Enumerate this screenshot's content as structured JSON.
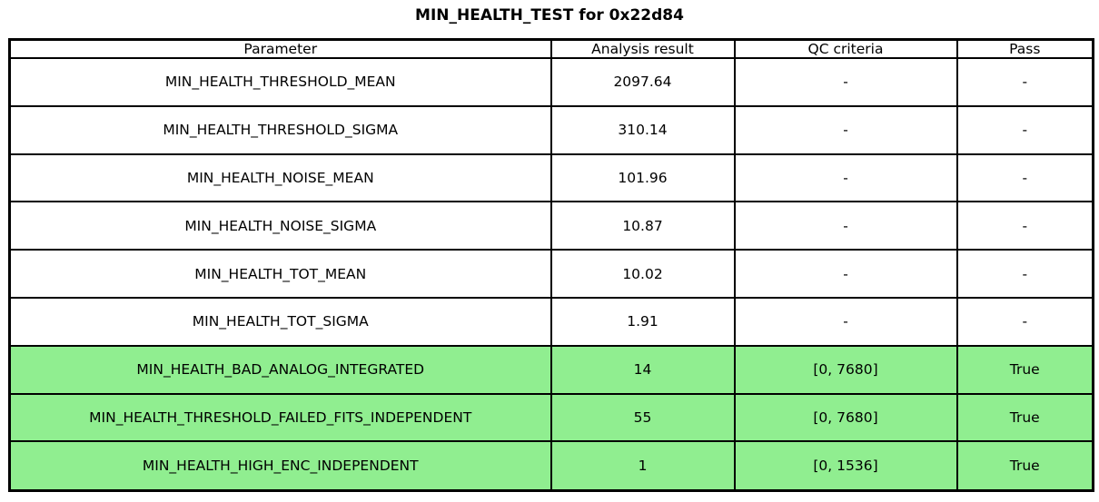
{
  "title": "MIN_HEALTH_TEST for 0x22d84",
  "colors": {
    "highlight": "#90EE90",
    "border": "#000000",
    "background": "#FFFFFF",
    "text": "#000000"
  },
  "chart_data": {
    "type": "table",
    "title": "MIN_HEALTH_TEST for 0x22d84",
    "columns": [
      "Parameter",
      "Analysis result",
      "QC criteria",
      "Pass"
    ],
    "rows": [
      {
        "cells": [
          "MIN_HEALTH_THRESHOLD_MEAN",
          "2097.64",
          "-",
          "-"
        ],
        "highlight": false
      },
      {
        "cells": [
          "MIN_HEALTH_THRESHOLD_SIGMA",
          "310.14",
          "-",
          "-"
        ],
        "highlight": false
      },
      {
        "cells": [
          "MIN_HEALTH_NOISE_MEAN",
          "101.96",
          "-",
          "-"
        ],
        "highlight": false
      },
      {
        "cells": [
          "MIN_HEALTH_NOISE_SIGMA",
          "10.87",
          "-",
          "-"
        ],
        "highlight": false
      },
      {
        "cells": [
          "MIN_HEALTH_TOT_MEAN",
          "10.02",
          "-",
          "-"
        ],
        "highlight": false
      },
      {
        "cells": [
          "MIN_HEALTH_TOT_SIGMA",
          "1.91",
          "-",
          "-"
        ],
        "highlight": false
      },
      {
        "cells": [
          "MIN_HEALTH_BAD_ANALOG_INTEGRATED",
          "14",
          "[0, 7680]",
          "True"
        ],
        "highlight": true
      },
      {
        "cells": [
          "MIN_HEALTH_THRESHOLD_FAILED_FITS_INDEPENDENT",
          "55",
          "[0, 7680]",
          "True"
        ],
        "highlight": true
      },
      {
        "cells": [
          "MIN_HEALTH_HIGH_ENC_INDEPENDENT",
          "1",
          "[0, 1536]",
          "True"
        ],
        "highlight": true
      }
    ]
  }
}
